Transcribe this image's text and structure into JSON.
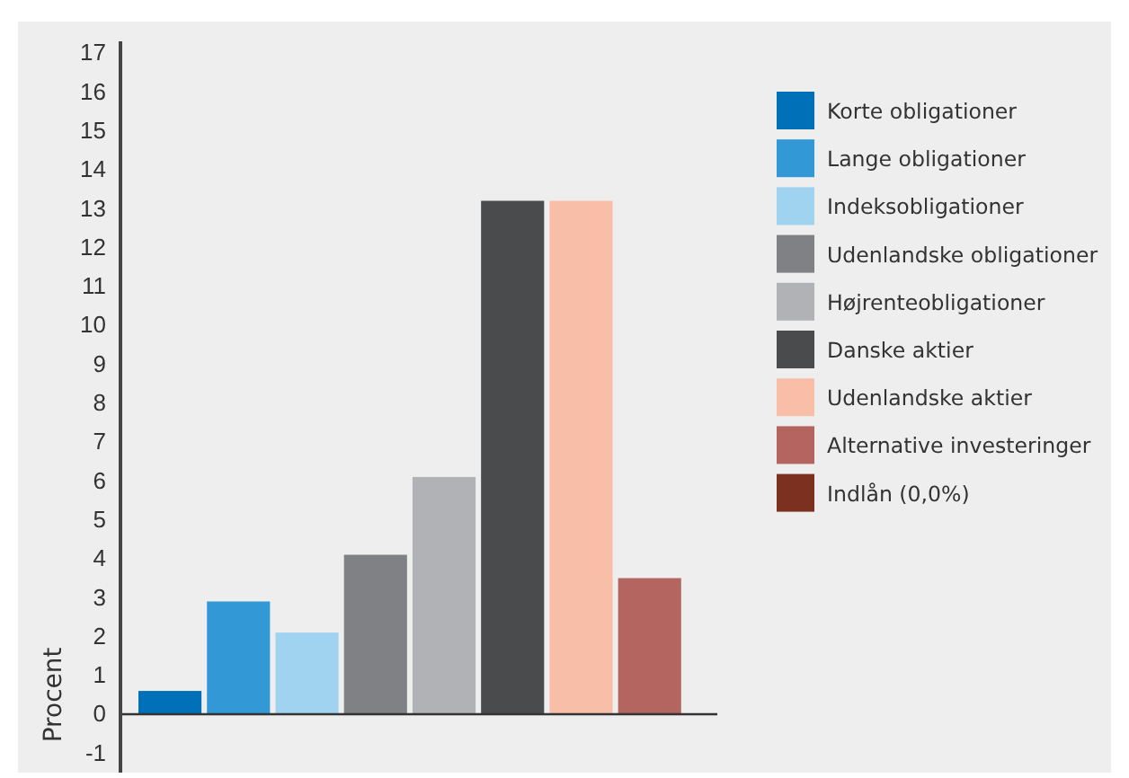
{
  "chart_data": {
    "type": "bar",
    "ylabel": "Procent",
    "categories": [
      null
    ],
    "series": [
      {
        "name": "Korte obligationer",
        "color": "#0070b8",
        "values": [
          0.6
        ]
      },
      {
        "name": "Lange obligationer",
        "color": "#3399d6",
        "values": [
          2.9
        ]
      },
      {
        "name": "Indeksobligationer",
        "color": "#a0d3f0",
        "values": [
          2.1
        ]
      },
      {
        "name": "Udenlandske obligationer",
        "color": "#808184",
        "values": [
          4.1
        ]
      },
      {
        "name": "Højrenteobligationer",
        "color": "#b1b2b5",
        "values": [
          6.1
        ]
      },
      {
        "name": "Danske aktier",
        "color": "#4a4b4d",
        "values": [
          13.2
        ]
      },
      {
        "name": "Udenlandske aktier",
        "color": "#f9bea7",
        "values": [
          13.2
        ]
      },
      {
        "name": "Alternative investeringer",
        "color": "#b5655f",
        "values": [
          3.5
        ]
      },
      {
        "name": "Indlån (0,0%)",
        "color": "#7b3020",
        "values": [
          0.0
        ]
      }
    ],
    "ylim": [
      -1.5,
      17.3
    ],
    "yticks": [
      -1,
      0,
      1,
      2,
      3,
      4,
      5,
      6,
      7,
      8,
      9,
      10,
      11,
      12,
      13,
      14,
      15,
      16,
      17
    ],
    "legend": "right"
  }
}
